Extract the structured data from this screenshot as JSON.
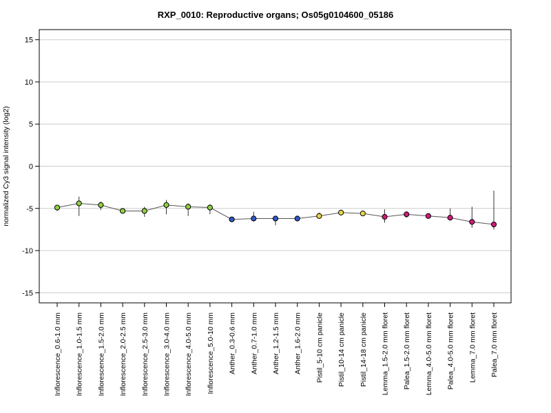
{
  "chart_data": {
    "type": "line",
    "title": "RXP_0010: Reproductive organs; Os05g0104600_05186",
    "xlabel": "",
    "ylabel": "normalized Cy3 signal intensity (log2)",
    "ylim": [
      -16.2,
      16.2
    ],
    "yticks": [
      15,
      10,
      5,
      0,
      -5,
      -10,
      -15
    ],
    "ytick_labels": [
      "15",
      "10",
      "5",
      "0",
      "-5",
      "-10",
      "-15"
    ],
    "grid": "horizontal",
    "categories": [
      "Inflorescence_0.6-1.0 mm",
      "Inflorescence_1.0-1.5 mm",
      "Inflorescence_1.5-2.0 mm",
      "Inflorescence_2.0-2.5 mm",
      "Inflorescence_2.5-3.0 mm",
      "Inflorescence_3.0-4.0 mm",
      "Inflorescence_4.0-5.0 mm",
      "Inflorescence_5.0-10 mm",
      "Anther_0.3-0.6 mm",
      "Anther_0.7-1.0 mm",
      "Anther_1.2-1.5 mm",
      "Anther_1.6-2.0 mm",
      "Pistil_5-10 cm panicle",
      "Pistil_10-14 cm panicle",
      "Pistil_14-18 cm panicle",
      "Lemma_1.5-2.0 mm floret",
      "Palea_1.5-2.0 mm floret",
      "Lemma_4.0-5.0 mm floret",
      "Palea_4.0-5.0 mm floret",
      "Lemma_7.0 mm floret",
      "Palea_7.0 mm floret"
    ],
    "series": [
      {
        "values": [
          -4.9,
          -4.4,
          -4.6,
          -5.3,
          -5.3,
          -4.6,
          -4.8,
          -4.9,
          -6.3,
          -6.2,
          -6.2,
          -6.2,
          -5.9,
          -5.5,
          -5.6,
          -6.0,
          -5.7,
          -5.9,
          -6.1,
          -6.6,
          -6.9
        ],
        "error_low": [
          -5.3,
          -5.9,
          -5.2,
          -5.3,
          -6.0,
          -5.7,
          -5.9,
          -5.7,
          -6.4,
          -6.4,
          -7.0,
          -6.4,
          -6.1,
          -5.6,
          -5.7,
          -6.7,
          -6.1,
          -6.1,
          -6.3,
          -7.3,
          -7.5
        ],
        "error_high": [
          -4.6,
          -3.6,
          -4.2,
          -5.2,
          -4.8,
          -4.0,
          -4.4,
          -4.5,
          -6.2,
          -5.4,
          -6.1,
          -6.0,
          -5.5,
          -5.4,
          -5.5,
          -5.1,
          -5.5,
          -5.7,
          -5.0,
          -4.8,
          -2.9
        ],
        "point_colors": [
          "#8fd13f",
          "#8fd13f",
          "#8fd13f",
          "#8fd13f",
          "#8fd13f",
          "#8fd13f",
          "#8fd13f",
          "#8fd13f",
          "#2f59c6",
          "#2f59c6",
          "#2f59c6",
          "#2f59c6",
          "#e8d545",
          "#e8d545",
          "#e8d545",
          "#d21a78",
          "#d21a78",
          "#d21a78",
          "#d21a78",
          "#d21a78",
          "#d21a78"
        ]
      }
    ]
  },
  "colors": {
    "inflorescence": "#8fd13f",
    "anther": "#2f59c6",
    "pistil": "#e8d545",
    "lemma_palea": "#d21a78",
    "grid": "#cccccc",
    "line": "#555555"
  }
}
